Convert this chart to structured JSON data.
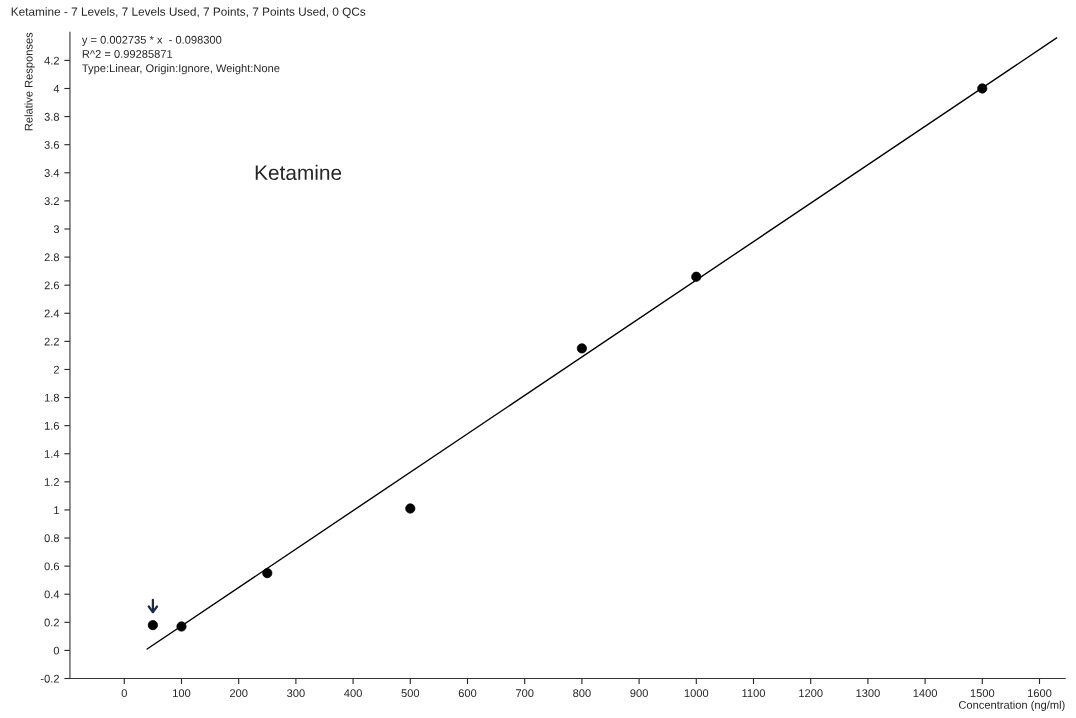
{
  "chart_data": {
    "type": "scatter",
    "title": "Ketamine - 7 Levels, 7 Levels Used, 7 Points, 7 Points Used, 0 QCs",
    "xlabel": "Concentration (ng/ml)",
    "ylabel": "Relative Responses",
    "annotations": [
      "y = 0.002735 * x  - 0.098300",
      "R^2 = 0.99285871",
      "Type:Linear, Origin:Ignore, Weight:None",
      "Ketamine"
    ],
    "series": [
      {
        "color": "#000000",
        "marker": "circle",
        "x": [
          50,
          100,
          250,
          500,
          800,
          1000,
          1500
        ],
        "values": [
          0.18,
          0.17,
          0.55,
          1.01,
          2.15,
          2.66,
          4.0
        ]
      },
      {
        "type": "line",
        "color": "#000000",
        "line_style": "solid",
        "x": [
          40,
          1630
        ],
        "values": [
          0.01,
          4.36
        ]
      }
    ],
    "xlim": [
      -95,
      1645
    ],
    "ylim": [
      -0.2,
      4.4
    ],
    "xticks": [
      0,
      100,
      200,
      300,
      400,
      500,
      600,
      700,
      800,
      900,
      1000,
      1100,
      1200,
      1300,
      1400,
      1500,
      1600
    ],
    "yticks": [
      -0.2,
      0,
      0.2,
      0.4,
      0.6,
      0.8,
      1,
      1.2,
      1.4,
      1.6,
      1.8,
      2,
      2.2,
      2.4,
      2.6,
      2.8,
      3,
      3.2,
      3.4,
      3.6,
      3.8,
      4,
      4.2
    ],
    "grid": false
  }
}
